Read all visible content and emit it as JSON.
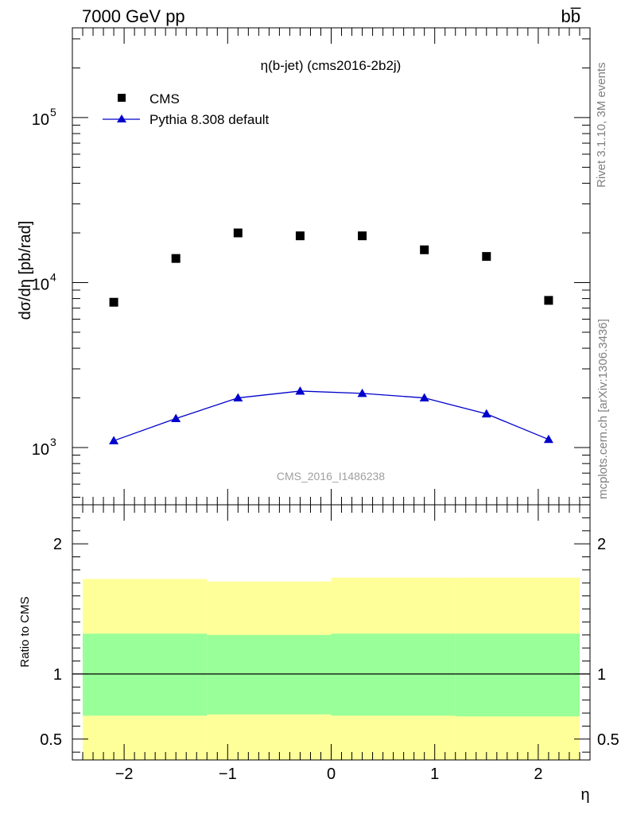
{
  "header": {
    "left_label": "7000 GeV pp",
    "right_label": "bb̅"
  },
  "side_labels": {
    "top": "Rivet 3.1.10,  3M events",
    "bottom": "mcplots.cern.ch [arXiv:1306.3436]"
  },
  "chart_data": [
    {
      "type": "scatter",
      "title": "η(b-jet) (cms2016-2b2j)",
      "ylabel": "dσ/dη [pb/rad]",
      "xlabel": "",
      "y_scale": "log",
      "xlim": [
        -2.5,
        2.5
      ],
      "ylim": [
        450,
        350000
      ],
      "legend_position": "top-left",
      "watermark": "CMS_2016_I1486238",
      "x": [
        -2.1,
        -1.5,
        -0.9,
        -0.3,
        0.3,
        0.9,
        1.5,
        2.1
      ],
      "series": [
        {
          "name": "CMS",
          "marker": "square",
          "color": "#000000",
          "values": [
            7600,
            14000,
            20000,
            19200,
            19200,
            15800,
            14400,
            7800
          ]
        },
        {
          "name": "Pythia 8.308 default",
          "marker": "triangle",
          "color": "#0000cc",
          "values": [
            1100,
            1500,
            2000,
            2200,
            2130,
            2000,
            1600,
            1120
          ]
        }
      ],
      "y_ticks": [
        {
          "value": 1000,
          "base": "10",
          "exp": "3"
        },
        {
          "value": 10000,
          "base": "10",
          "exp": "4"
        },
        {
          "value": 100000,
          "base": "10",
          "exp": "5"
        }
      ]
    },
    {
      "type": "area",
      "ylabel": "Ratio to CMS",
      "xlabel": "η",
      "xlim": [
        -2.5,
        2.5
      ],
      "ylim": [
        0.34,
        2.3
      ],
      "reference_line": 1,
      "x_ticks": [
        "−2",
        "−1",
        "0",
        "1",
        "2"
      ],
      "x_tick_values": [
        -2,
        -1,
        0,
        1,
        2
      ],
      "y_ticks": [
        "0.5",
        "1",
        "2"
      ],
      "y_tick_values": [
        0.5,
        1,
        2
      ],
      "bins": [
        {
          "x_low": -2.4,
          "x_high": -1.2,
          "yellow": [
            0.34,
            1.73
          ],
          "green": [
            0.68,
            1.31
          ]
        },
        {
          "x_low": -1.2,
          "x_high": 0.0,
          "yellow": [
            0.34,
            1.71
          ],
          "green": [
            0.69,
            1.3
          ]
        },
        {
          "x_low": 0.0,
          "x_high": 1.2,
          "yellow": [
            0.34,
            1.74
          ],
          "green": [
            0.68,
            1.31
          ]
        },
        {
          "x_low": 1.2,
          "x_high": 2.4,
          "yellow": [
            0.34,
            1.74
          ],
          "green": [
            0.675,
            1.31
          ]
        }
      ],
      "colors": {
        "outer_band": "#ffff99",
        "inner_band": "#99ff99"
      }
    }
  ]
}
